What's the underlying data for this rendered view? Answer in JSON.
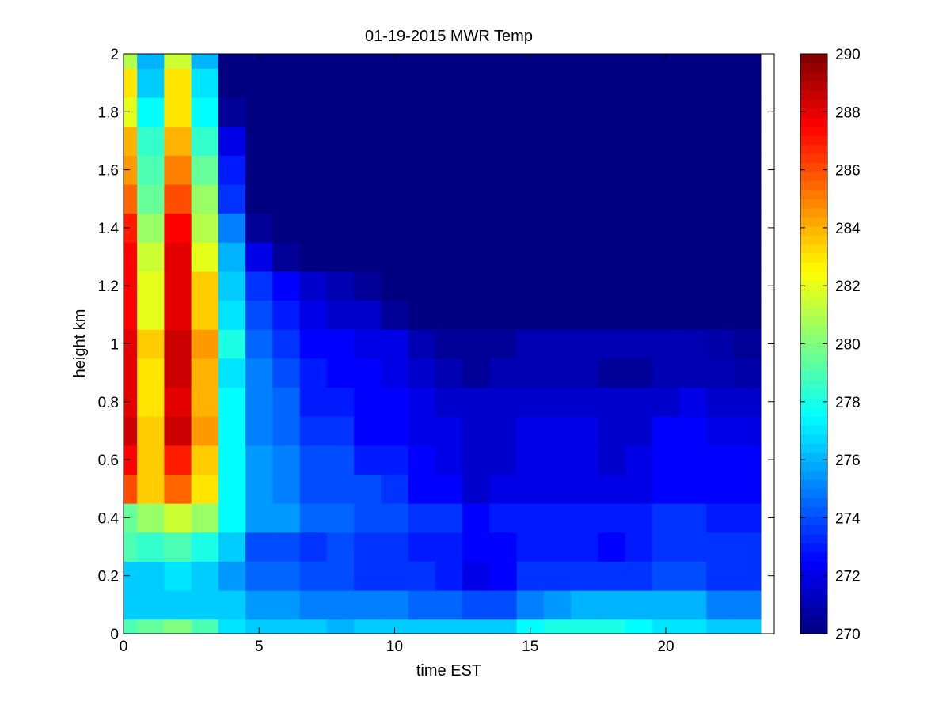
{
  "chart_data": {
    "type": "heatmap",
    "title": "01-19-2015 MWR Temp",
    "xlabel": "time EST",
    "ylabel": "height km",
    "colormap": "jet",
    "xlim": [
      0,
      24
    ],
    "ylim": [
      0,
      2
    ],
    "xticks": [
      0,
      5,
      10,
      15,
      20
    ],
    "yticks": [
      0,
      0.2,
      0.4,
      0.6,
      0.8,
      1,
      1.2,
      1.4,
      1.6,
      1.8,
      2
    ],
    "clim": [
      270,
      290
    ],
    "colorbar_ticks": [
      270,
      272,
      274,
      276,
      278,
      280,
      282,
      284,
      286,
      288,
      290
    ],
    "grid": false,
    "x_centers": [
      0,
      1,
      2,
      3,
      4,
      5,
      6,
      7,
      8,
      9,
      10,
      11,
      12,
      13,
      14,
      15,
      16,
      17,
      18,
      19,
      20,
      21,
      22,
      23
    ],
    "y_centers": [
      0,
      0.1,
      0.2,
      0.3,
      0.4,
      0.5,
      0.6,
      0.7,
      0.8,
      0.9,
      1.0,
      1.1,
      1.2,
      1.3,
      1.4,
      1.5,
      1.6,
      1.7,
      1.8,
      1.9,
      2.0
    ],
    "z": [
      [
        279.0,
        279.5,
        280.0,
        279.0,
        277.0,
        276.5,
        276.5,
        276.5,
        276.0,
        276.5,
        276.5,
        276.5,
        276.5,
        276.5,
        276.5,
        277.5,
        278.0,
        278.0,
        278.0,
        277.5,
        277.0,
        277.0,
        276.5,
        276.5
      ],
      [
        276.5,
        276.5,
        276.5,
        276.5,
        276.5,
        275.5,
        275.5,
        275.0,
        275.0,
        275.0,
        275.0,
        274.5,
        274.5,
        274.0,
        274.0,
        275.0,
        275.5,
        276.0,
        276.0,
        276.0,
        276.0,
        276.0,
        275.0,
        275.0
      ],
      [
        276.5,
        276.5,
        277.0,
        276.5,
        275.5,
        274.5,
        274.5,
        274.0,
        274.0,
        273.5,
        273.5,
        273.5,
        273.0,
        272.0,
        272.5,
        273.5,
        273.5,
        273.5,
        273.5,
        273.5,
        274.0,
        274.0,
        273.5,
        273.5
      ],
      [
        279.0,
        278.5,
        279.0,
        278.0,
        276.5,
        274.0,
        274.0,
        273.5,
        274.0,
        273.5,
        273.5,
        273.0,
        273.0,
        272.5,
        272.5,
        273.0,
        273.0,
        273.0,
        272.5,
        273.0,
        273.5,
        273.5,
        273.5,
        273.5
      ],
      [
        279.5,
        280.5,
        281.5,
        280.5,
        277.5,
        275.5,
        275.5,
        274.5,
        274.5,
        274.0,
        274.0,
        273.5,
        273.5,
        272.5,
        273.0,
        273.0,
        273.0,
        273.0,
        273.0,
        273.0,
        273.5,
        273.5,
        273.0,
        273.0
      ],
      [
        286.0,
        283.5,
        285.5,
        283.0,
        277.5,
        275.5,
        275.0,
        274.0,
        274.0,
        274.0,
        273.5,
        272.5,
        272.5,
        271.5,
        272.0,
        272.0,
        272.0,
        272.0,
        272.0,
        272.0,
        272.5,
        272.5,
        272.5,
        272.5
      ],
      [
        287.5,
        283.5,
        287.0,
        283.5,
        277.5,
        275.5,
        275.0,
        274.0,
        274.0,
        273.0,
        273.0,
        272.5,
        272.0,
        271.5,
        271.5,
        272.0,
        272.0,
        272.0,
        271.5,
        272.0,
        272.5,
        272.5,
        272.5,
        272.5
      ],
      [
        288.5,
        283.5,
        288.5,
        284.5,
        277.5,
        275.0,
        274.5,
        273.5,
        273.5,
        272.5,
        272.5,
        272.0,
        272.0,
        271.5,
        271.5,
        272.0,
        272.0,
        272.0,
        271.5,
        271.5,
        272.5,
        272.5,
        272.0,
        272.0
      ],
      [
        288.0,
        283.0,
        288.0,
        284.0,
        277.5,
        275.0,
        274.5,
        273.0,
        273.0,
        272.5,
        272.5,
        272.0,
        271.5,
        271.5,
        271.5,
        271.5,
        271.5,
        271.5,
        271.5,
        271.5,
        271.5,
        272.0,
        271.5,
        271.5
      ],
      [
        288.0,
        283.0,
        288.5,
        284.0,
        277.0,
        275.0,
        274.0,
        273.0,
        272.5,
        272.5,
        272.0,
        271.5,
        271.0,
        270.5,
        271.0,
        271.0,
        271.0,
        271.0,
        270.5,
        270.5,
        271.0,
        271.0,
        271.0,
        270.8
      ],
      [
        288.0,
        283.5,
        288.5,
        284.5,
        278.0,
        274.5,
        273.5,
        272.5,
        272.5,
        272.0,
        272.0,
        271.0,
        270.5,
        270.5,
        270.5,
        271.0,
        271.0,
        271.0,
        271.0,
        271.0,
        271.0,
        271.0,
        270.8,
        270.5
      ],
      [
        287.5,
        282.0,
        288.0,
        283.5,
        277.0,
        274.0,
        273.0,
        272.0,
        271.5,
        271.5,
        270.5,
        270.0,
        270.0,
        270.0,
        270.0,
        270.0,
        270.0,
        270.0,
        270.0,
        270.0,
        270.0,
        270.0,
        270.0,
        270.0
      ],
      [
        287.5,
        282.0,
        288.0,
        283.5,
        276.5,
        273.5,
        272.5,
        271.5,
        271.0,
        270.5,
        270.0,
        270.0,
        270.0,
        270.0,
        270.0,
        270.0,
        270.0,
        270.0,
        270.0,
        270.0,
        270.0,
        270.0,
        270.0,
        270.0
      ],
      [
        287.5,
        281.5,
        288.0,
        282.0,
        276.0,
        272.0,
        270.5,
        270.0,
        270.0,
        270.0,
        270.0,
        270.0,
        270.0,
        270.0,
        270.0,
        270.0,
        270.0,
        270.0,
        270.0,
        270.0,
        270.0,
        270.0,
        270.0,
        270.0
      ],
      [
        287.0,
        280.5,
        287.5,
        281.0,
        275.0,
        270.5,
        270.0,
        270.0,
        270.0,
        270.0,
        270.0,
        270.0,
        270.0,
        270.0,
        270.0,
        270.0,
        270.0,
        270.0,
        270.0,
        270.0,
        270.0,
        270.0,
        270.0,
        270.0
      ],
      [
        285.5,
        279.5,
        286.0,
        280.5,
        273.5,
        270.0,
        270.0,
        270.0,
        270.0,
        270.0,
        270.0,
        270.0,
        270.0,
        270.0,
        270.0,
        270.0,
        270.0,
        270.0,
        270.0,
        270.0,
        270.0,
        270.0,
        270.0,
        270.0
      ],
      [
        284.5,
        279.0,
        285.0,
        279.5,
        273.0,
        270.0,
        270.0,
        270.0,
        270.0,
        270.0,
        270.0,
        270.0,
        270.0,
        270.0,
        270.0,
        270.0,
        270.0,
        270.0,
        270.0,
        270.0,
        270.0,
        270.0,
        270.0,
        270.0
      ],
      [
        284.0,
        278.5,
        284.0,
        278.5,
        272.0,
        270.0,
        270.0,
        270.0,
        270.0,
        270.0,
        270.0,
        270.0,
        270.0,
        270.0,
        270.0,
        270.0,
        270.0,
        270.0,
        270.0,
        270.0,
        270.0,
        270.0,
        270.0,
        270.0
      ],
      [
        282.0,
        277.5,
        283.0,
        277.5,
        270.5,
        270.0,
        270.0,
        270.0,
        270.0,
        270.0,
        270.0,
        270.0,
        270.0,
        270.0,
        270.0,
        270.0,
        270.0,
        270.0,
        270.0,
        270.0,
        270.0,
        270.0,
        270.0,
        270.0
      ],
      [
        283.0,
        276.5,
        283.0,
        277.0,
        270.0,
        270.0,
        270.0,
        270.0,
        270.0,
        270.0,
        270.0,
        270.0,
        270.0,
        270.0,
        270.0,
        270.0,
        270.0,
        270.0,
        270.0,
        270.0,
        270.0,
        270.0,
        270.0,
        270.0
      ],
      [
        281.0,
        276.0,
        281.5,
        276.0,
        270.0,
        270.0,
        270.0,
        270.0,
        270.0,
        270.0,
        270.0,
        270.0,
        270.0,
        270.0,
        270.0,
        270.0,
        270.0,
        270.0,
        270.0,
        270.0,
        270.0,
        270.0,
        270.0,
        270.0
      ]
    ]
  }
}
